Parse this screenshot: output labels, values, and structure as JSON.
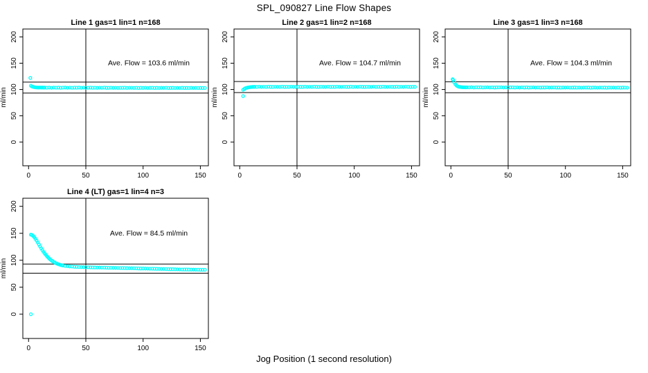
{
  "page": {
    "title": "SPL_090827  Line Flow Shapes",
    "xlabel": "Jog Position (1 second resolution)"
  },
  "colors": {
    "points": "#00ffff",
    "axis": "#000000"
  },
  "chart_data": [
    {
      "type": "scatter",
      "title": "Line 1 gas=1 lin=1 n=168",
      "annotation": "Ave. Flow =  103.6  ml/min",
      "ave_flow": 103.6,
      "ylabel": "ml/min",
      "x_ticks": [
        0,
        50,
        100,
        150
      ],
      "y_ticks": [
        0,
        50,
        100,
        150,
        200
      ],
      "x_range": [
        -5,
        157
      ],
      "y_range": [
        -45,
        215
      ],
      "hlines": [
        114.0,
        93.2
      ],
      "vline": 50,
      "annotation_pos": [
        105,
        150
      ],
      "outliers": [
        [
          1.5,
          122.0
        ]
      ],
      "head": [
        [
          2,
          107.2
        ],
        [
          3,
          105.9
        ],
        [
          4,
          105.1
        ],
        [
          5,
          104.5
        ],
        [
          6,
          104.1
        ],
        [
          7,
          103.9
        ],
        [
          8,
          103.8
        ],
        [
          9,
          103.7
        ],
        [
          10,
          103.9
        ],
        [
          11,
          103.6
        ],
        [
          12,
          103.8
        ],
        [
          13,
          103.5
        ]
      ],
      "tail": {
        "x_start": 14,
        "x_step": 2,
        "y": [
          103.6,
          103.4,
          103.7,
          103.3,
          103.6,
          103.4,
          103.7,
          103.3,
          103.5,
          103.6,
          103.3,
          103.5,
          103.2,
          103.5,
          103.4,
          103.6,
          103.3,
          103.5,
          103.2,
          103.4,
          103.5,
          103.2,
          103.4,
          103.1,
          103.4,
          103.2,
          103.5,
          103.1,
          103.3,
          103.4,
          103.1,
          103.3,
          103.0,
          103.3,
          103.2,
          103.4,
          103.0,
          103.2,
          103.3,
          103.0,
          103.2,
          102.9,
          103.2,
          103.0,
          103.3,
          102.9,
          103.1,
          103.2,
          102.9,
          103.1,
          102.8,
          103.1,
          103.0,
          103.2,
          102.8,
          103.0,
          103.1,
          102.8,
          103.0,
          102.9,
          103.1,
          102.8,
          103.0,
          102.9,
          103.1,
          102.8,
          103.0,
          102.8,
          103.0,
          102.9,
          102.8
        ]
      }
    },
    {
      "type": "scatter",
      "title": "Line 2 gas=1 lin=2 n=168",
      "annotation": "Ave. Flow =  104.7  ml/min",
      "ave_flow": 104.7,
      "ylabel": "ml/min",
      "x_ticks": [
        0,
        50,
        100,
        150
      ],
      "y_ticks": [
        0,
        50,
        100,
        150,
        200
      ],
      "x_range": [
        -5,
        157
      ],
      "y_range": [
        -45,
        215
      ],
      "hlines": [
        115.2,
        94.2
      ],
      "vline": 50,
      "annotation_pos": [
        105,
        150
      ],
      "outliers": [
        [
          3,
          87.5
        ]
      ],
      "head": [
        [
          3,
          99.4
        ],
        [
          4,
          101.2
        ],
        [
          5,
          102.4
        ],
        [
          6,
          103.2
        ],
        [
          7,
          103.8
        ],
        [
          8,
          104.2
        ],
        [
          9,
          104.5
        ],
        [
          10,
          104.7
        ],
        [
          11,
          104.9
        ],
        [
          12,
          105.0
        ],
        [
          13,
          105.1
        ]
      ],
      "tail": {
        "x_start": 15,
        "x_step": 2,
        "y": [
          105.0,
          105.3,
          104.9,
          105.2,
          105.0,
          105.3,
          105.1,
          104.9,
          105.2,
          105.1,
          105.0,
          105.3,
          104.9,
          105.2,
          105.0,
          105.3,
          105.1,
          104.9,
          105.2,
          105.1,
          105.0,
          105.3,
          104.9,
          105.2,
          105.0,
          105.3,
          105.1,
          104.9,
          105.2,
          105.1,
          105.0,
          105.3,
          104.9,
          105.2,
          105.0,
          105.3,
          105.1,
          104.9,
          105.2,
          105.1,
          105.0,
          105.3,
          104.9,
          105.2,
          105.0,
          105.3,
          105.1,
          104.9,
          105.2,
          105.1,
          105.0,
          105.3,
          104.9,
          105.2,
          105.0,
          105.3,
          105.1,
          104.9,
          105.2,
          105.1,
          105.0,
          105.3,
          104.9,
          105.2,
          105.0,
          105.3,
          105.1,
          104.9,
          105.2,
          105.1
        ]
      }
    },
    {
      "type": "scatter",
      "title": "Line 3 gas=1 lin=3 n=168",
      "annotation": "Ave. Flow =  104.3  ml/min",
      "ave_flow": 104.3,
      "ylabel": "ml/min",
      "x_ticks": [
        0,
        50,
        100,
        150
      ],
      "y_ticks": [
        0,
        50,
        100,
        150,
        200
      ],
      "x_range": [
        -5,
        157
      ],
      "y_range": [
        -45,
        215
      ],
      "hlines": [
        114.7,
        93.9
      ],
      "vline": 50,
      "annotation_pos": [
        105,
        150
      ],
      "outliers": [
        [
          1.5,
          119.5
        ]
      ],
      "head": [
        [
          2,
          118.0
        ],
        [
          3,
          113.2
        ],
        [
          4,
          109.8
        ],
        [
          5,
          107.5
        ],
        [
          6,
          106.0
        ],
        [
          7,
          105.2
        ],
        [
          8,
          104.8
        ],
        [
          9,
          104.5
        ],
        [
          10,
          104.3
        ],
        [
          11,
          104.2
        ],
        [
          12,
          104.2
        ],
        [
          13,
          104.1
        ]
      ],
      "tail": {
        "x_start": 14,
        "x_step": 2,
        "y": [
          104.2,
          104.0,
          104.3,
          103.9,
          104.2,
          104.0,
          104.2,
          103.9,
          104.1,
          104.2,
          103.9,
          104.1,
          103.8,
          104.1,
          104.0,
          104.2,
          103.9,
          104.1,
          103.8,
          104.0,
          104.1,
          103.8,
          104.0,
          103.7,
          104.0,
          103.8,
          104.1,
          103.7,
          103.9,
          104.0,
          103.7,
          103.9,
          103.6,
          103.9,
          103.8,
          104.0,
          103.6,
          103.8,
          103.9,
          103.6,
          103.8,
          103.5,
          103.8,
          103.6,
          103.9,
          103.5,
          103.7,
          103.8,
          103.5,
          103.7,
          103.4,
          103.7,
          103.6,
          103.8,
          103.4,
          103.6,
          103.7,
          103.4,
          103.6,
          103.5,
          103.7,
          103.4,
          103.6,
          103.5,
          103.7,
          103.4,
          103.6,
          103.4,
          103.6,
          103.5,
          103.4
        ]
      }
    },
    {
      "type": "scatter",
      "title": "Line 4 (LT) gas=1 lin=4 n=3",
      "annotation": "Ave. Flow =  84.5  ml/min",
      "ave_flow": 84.5,
      "ylabel": "ml/min",
      "x_ticks": [
        0,
        50,
        100,
        150
      ],
      "y_ticks": [
        0,
        50,
        100,
        150,
        200
      ],
      "x_range": [
        -5,
        157
      ],
      "y_range": [
        -45,
        215
      ],
      "hlines": [
        93.0,
        76.1
      ],
      "vline": 50,
      "annotation_pos": [
        105,
        150
      ],
      "outliers": [
        [
          2,
          0.0
        ]
      ],
      "head": [
        [
          2,
          147.5
        ],
        [
          3,
          146.8
        ],
        [
          4,
          145.2
        ],
        [
          5,
          142.8
        ],
        [
          6,
          139.8
        ],
        [
          7,
          136.5
        ],
        [
          8,
          133.0
        ],
        [
          9,
          129.4
        ],
        [
          10,
          125.8
        ],
        [
          11,
          122.3
        ],
        [
          12,
          119.0
        ],
        [
          13,
          115.8
        ],
        [
          14,
          112.9
        ],
        [
          15,
          110.2
        ],
        [
          16,
          107.7
        ],
        [
          17,
          105.4
        ],
        [
          18,
          103.3
        ],
        [
          19,
          101.4
        ],
        [
          20,
          99.7
        ],
        [
          21,
          98.2
        ],
        [
          22,
          96.8
        ],
        [
          23,
          95.6
        ],
        [
          24,
          94.5
        ],
        [
          25,
          93.6
        ],
        [
          26,
          92.7
        ],
        [
          27,
          92.0
        ],
        [
          28,
          91.3
        ],
        [
          29,
          90.7
        ],
        [
          30,
          90.2
        ]
      ],
      "tail": {
        "x_start": 32,
        "x_step": 2,
        "y": [
          89.5,
          89.0,
          88.6,
          88.3,
          88.0,
          87.8,
          87.6,
          87.4,
          87.3,
          87.1,
          87.0,
          86.9,
          86.8,
          86.7,
          86.6,
          86.5,
          86.4,
          86.4,
          86.3,
          86.2,
          86.1,
          86.0,
          85.9,
          85.8,
          85.7,
          85.6,
          85.5,
          85.4,
          85.3,
          85.2,
          85.1,
          85.0,
          84.9,
          84.8,
          84.7,
          84.6,
          84.5,
          84.4,
          84.3,
          84.2,
          84.1,
          84.0,
          83.9,
          83.8,
          83.7,
          83.6,
          83.5,
          83.4,
          83.3,
          83.2,
          83.1,
          83.0,
          82.9,
          82.9,
          82.8,
          82.7,
          82.7,
          82.6,
          82.6,
          82.5,
          82.5,
          82.4
        ]
      }
    }
  ]
}
